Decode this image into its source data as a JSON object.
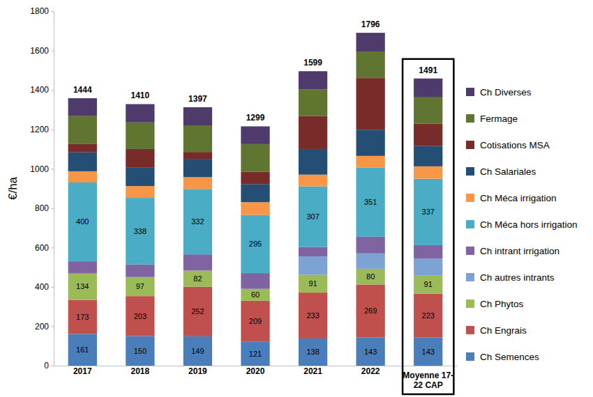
{
  "chart_data": {
    "type": "bar",
    "stacked": true,
    "y_label": "€/ha",
    "categories": [
      "2017",
      "2018",
      "2019",
      "2020",
      "2021",
      "2022",
      "Moyenne 17-22 CAP"
    ],
    "totals": [
      1444,
      1410,
      1397,
      1299,
      1599,
      1796,
      1491
    ],
    "ylim": [
      0,
      1800
    ],
    "yticks": [
      0,
      200,
      400,
      600,
      800,
      1000,
      1200,
      1400,
      1600,
      1800
    ],
    "grid": false,
    "legend": "right",
    "series": [
      {
        "name": "Ch Semences",
        "color": "#4a7ebb",
        "data_labels": true,
        "values": [
          161,
          150,
          149,
          121,
          138,
          143,
          143
        ]
      },
      {
        "name": "Ch Engrais",
        "color": "#c0504d",
        "data_labels": true,
        "values": [
          173,
          203,
          252,
          209,
          233,
          269,
          223
        ]
      },
      {
        "name": "Ch Phytos",
        "color": "#9bbb59",
        "data_labels": true,
        "values": [
          134,
          97,
          82,
          60,
          91,
          80,
          91
        ]
      },
      {
        "name": "Ch autres intrants",
        "color": "#7da3d5",
        "values": [
          0,
          0,
          0,
          0,
          93,
          78,
          86
        ]
      },
      {
        "name": "Ch intrant irrigation",
        "color": "#8064a2",
        "values": [
          62,
          64,
          82,
          80,
          48,
          85,
          69
        ]
      },
      {
        "name": "Ch Méca hors irrigation",
        "color": "#4bacc6",
        "data_labels": true,
        "values": [
          400,
          338,
          332,
          295,
          307,
          351,
          337
        ]
      },
      {
        "name": "Ch Méca irrigation",
        "color": "#f79646",
        "values": [
          57,
          60,
          60,
          65,
          60,
          59,
          63
        ]
      },
      {
        "name": "Ch Salariales",
        "color": "#254e75",
        "values": [
          96,
          93,
          93,
          92,
          130,
          133,
          103
        ]
      },
      {
        "name": "Cotisations MSA",
        "color": "#772c2a",
        "values": [
          42,
          95,
          35,
          63,
          168,
          262,
          113
        ]
      },
      {
        "name": "Fermage",
        "color": "#5f7530",
        "values": [
          142,
          135,
          135,
          140,
          134,
          135,
          137
        ]
      },
      {
        "name": "Ch Diverses",
        "color": "#4f3b6b",
        "values": [
          91,
          93,
          92,
          90,
          93,
          95,
          93
        ]
      }
    ]
  }
}
